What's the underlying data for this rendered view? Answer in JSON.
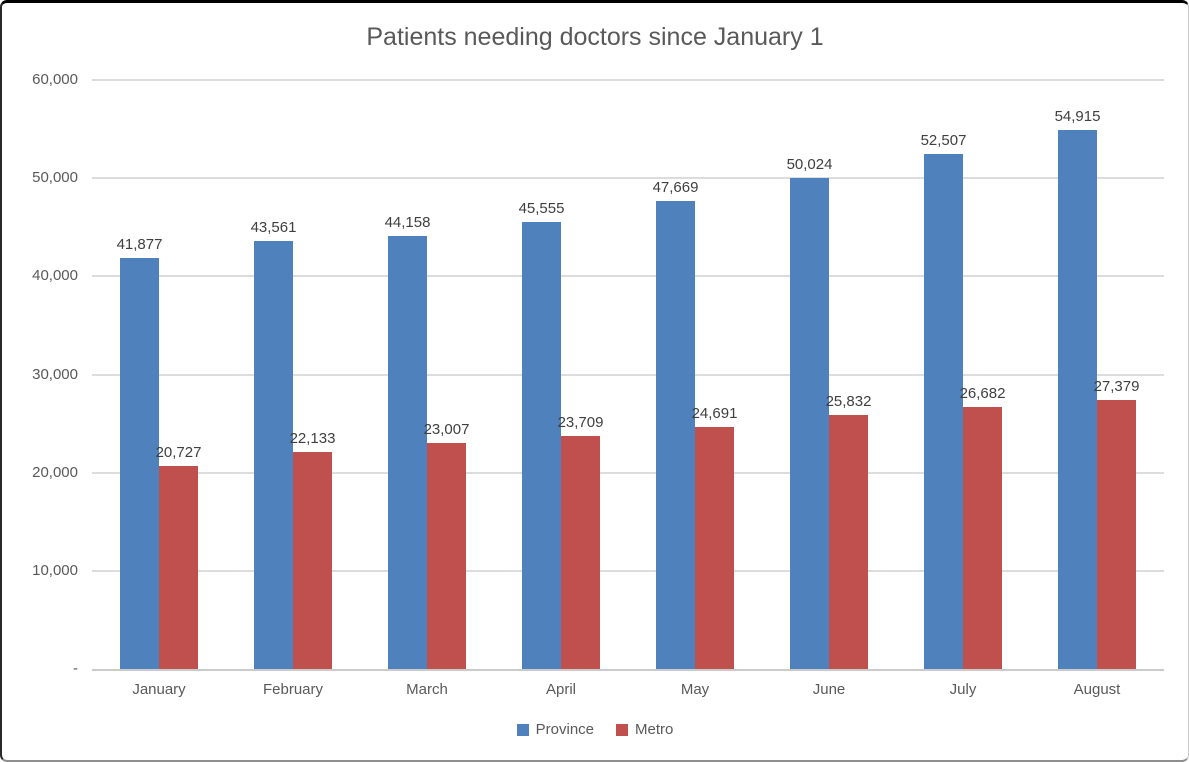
{
  "title": "Patients needing doctors since January 1",
  "chart_data": {
    "type": "bar",
    "title": "Patients needing doctors since January 1",
    "categories": [
      "January",
      "February",
      "March",
      "April",
      "May",
      "June",
      "July",
      "August"
    ],
    "series": [
      {
        "name": "Province",
        "color": "#4F81BD",
        "values": [
          41877,
          43561,
          44158,
          45555,
          47669,
          50024,
          52507,
          54915
        ],
        "labels": [
          "41,877",
          "43,561",
          "44,158",
          "45,555",
          "47,669",
          "50,024",
          "52,507",
          "54,915"
        ]
      },
      {
        "name": "Metro",
        "color": "#C0504D",
        "values": [
          20727,
          22133,
          23007,
          23709,
          24691,
          25832,
          26682,
          27379
        ],
        "labels": [
          "20,727",
          "22,133",
          "23,007",
          "23,709",
          "24,691",
          "25,832",
          "26,682",
          "27,379"
        ]
      }
    ],
    "xlabel": "",
    "ylabel": "",
    "ylim": [
      0,
      60000
    ],
    "yticks": [
      {
        "label": "60,000",
        "value": 60000
      },
      {
        "label": "50,000",
        "value": 50000
      },
      {
        "label": "40,000",
        "value": 40000
      },
      {
        "label": "30,000",
        "value": 30000
      },
      {
        "label": "20,000",
        "value": 20000
      },
      {
        "label": "10,000",
        "value": 10000
      },
      {
        "label": "-",
        "value": 0
      }
    ],
    "grid": "horizontal",
    "data_labels": true,
    "legend_position": "bottom"
  },
  "colors": {
    "province": "#4F81BD",
    "metro": "#C0504D",
    "gridline": "#DCDCDC",
    "axis_line": "#CBCBCB",
    "text": "#595959",
    "data_label": "#3F3F3F"
  }
}
